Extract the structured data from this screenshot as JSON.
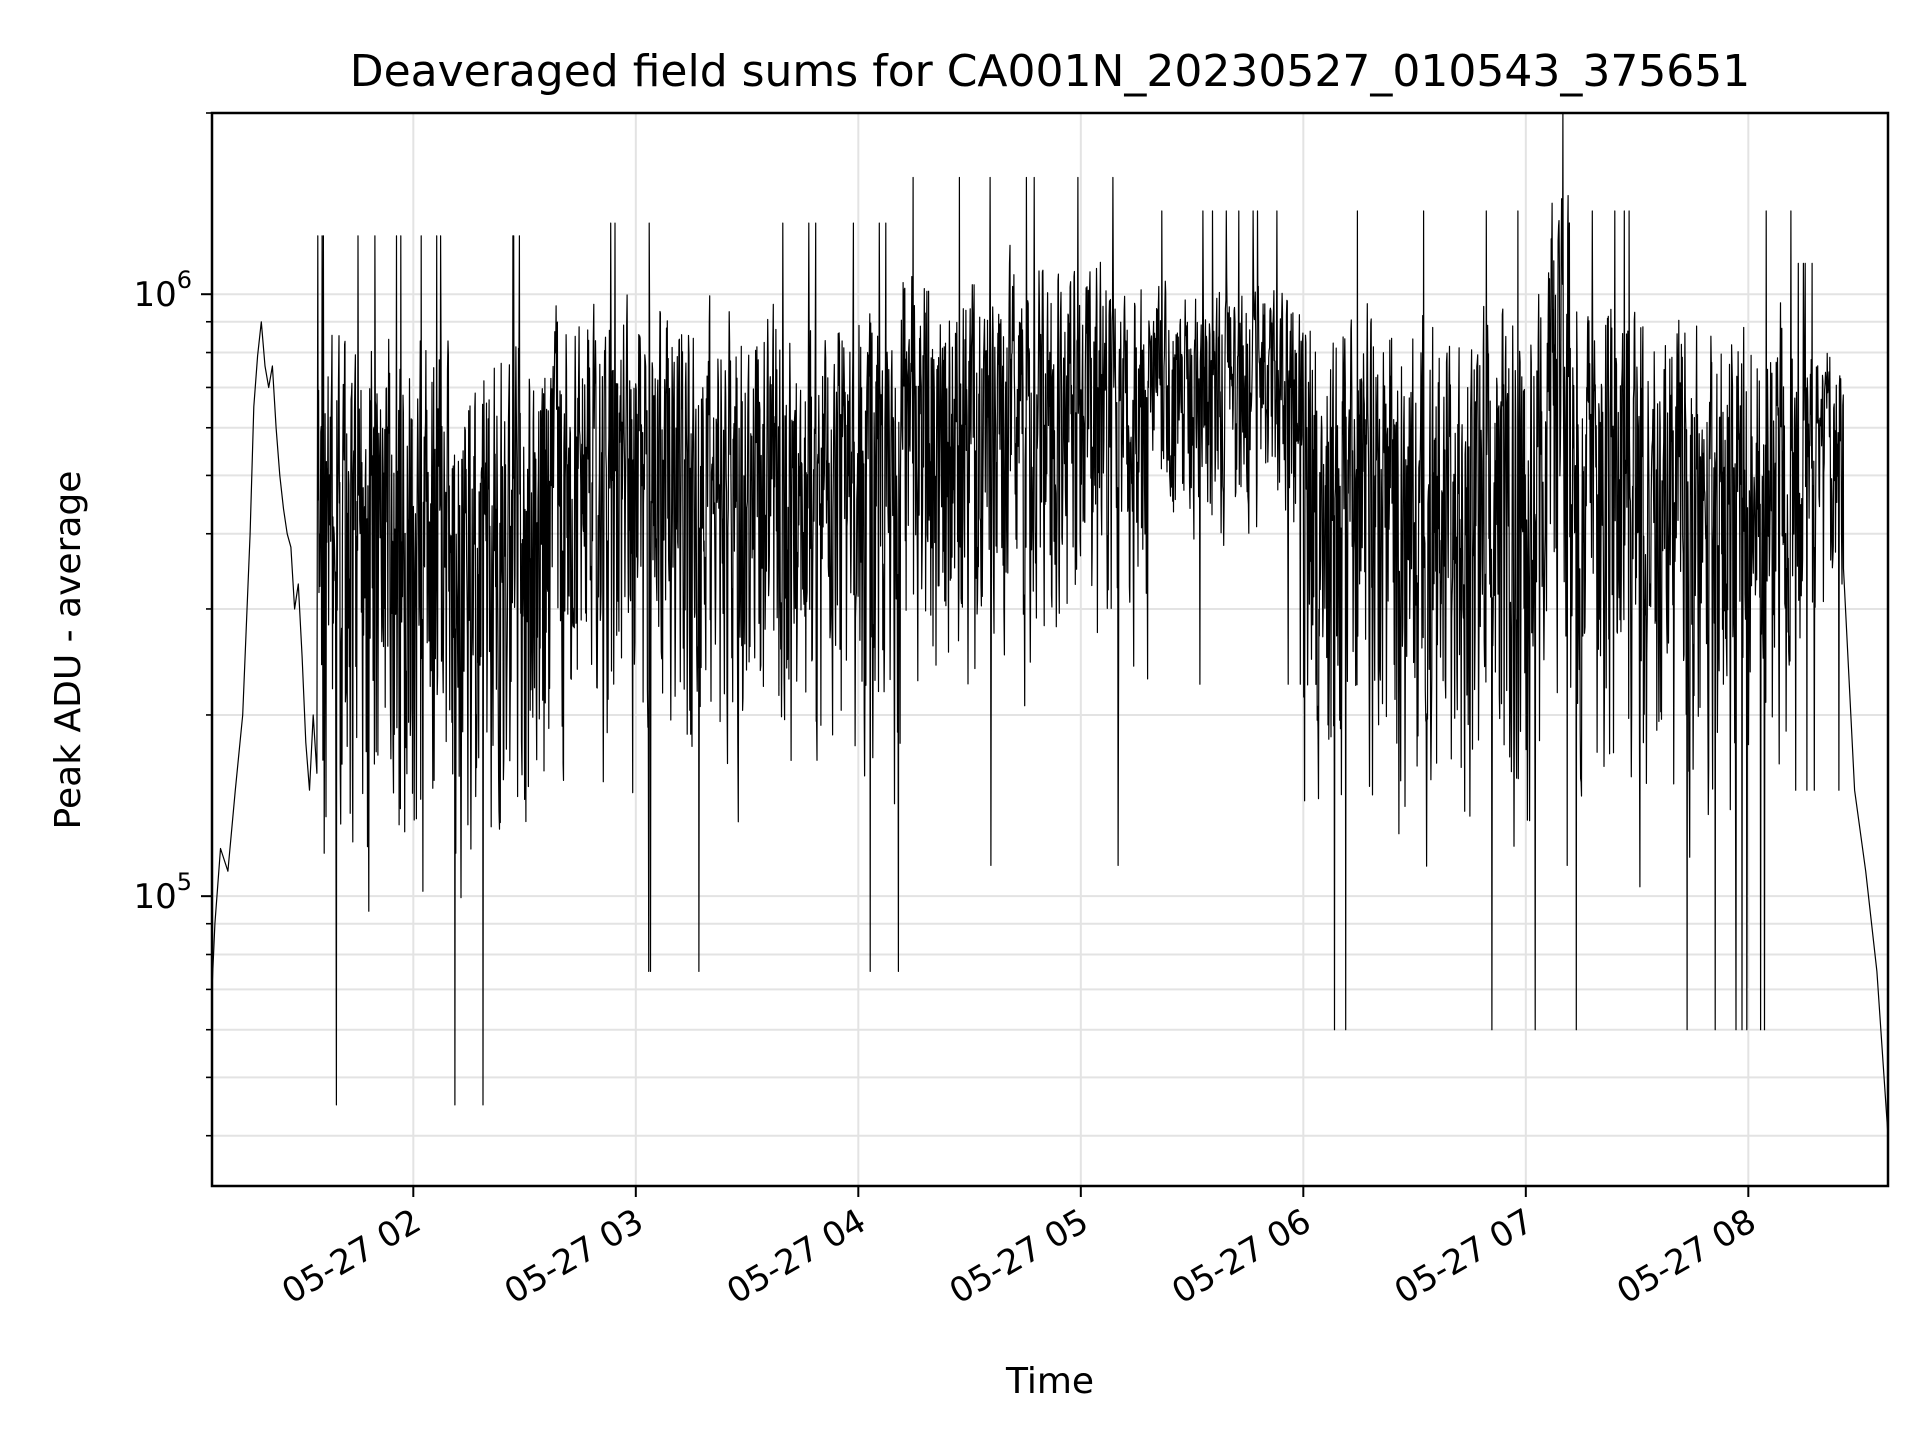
{
  "chart_data": {
    "type": "line",
    "title": "Deaveraged field sums for CA001N_20230527_010543_375651",
    "xlabel": "Time",
    "ylabel": "Peak ADU - average",
    "y_scale": "log",
    "ylim": [
      33000,
      2000000
    ],
    "y_major_ticks": [
      {
        "value": 100000,
        "base": "10",
        "exp": "5"
      },
      {
        "value": 1000000,
        "base": "10",
        "exp": "6"
      }
    ],
    "y_minor_ticks": [
      40000,
      50000,
      60000,
      70000,
      80000,
      90000,
      200000,
      300000,
      400000,
      500000,
      600000,
      700000,
      800000,
      900000,
      2000000
    ],
    "xlim": [
      "2023-05-27 01:05:43",
      "2023-05-27 08:37:40"
    ],
    "x_ticks": [
      {
        "time": "2023-05-27 02:00",
        "label": "05-27 02"
      },
      {
        "time": "2023-05-27 03:00",
        "label": "05-27 03"
      },
      {
        "time": "2023-05-27 04:00",
        "label": "05-27 04"
      },
      {
        "time": "2023-05-27 05:00",
        "label": "05-27 05"
      },
      {
        "time": "2023-05-27 06:00",
        "label": "05-27 06"
      },
      {
        "time": "2023-05-27 07:00",
        "label": "05-27 07"
      },
      {
        "time": "2023-05-27 08:00",
        "label": "05-27 08"
      }
    ],
    "grid": true,
    "line_color": "#000000",
    "series": [
      {
        "points": [
          {
            "x": "2023-05-27 01:05:43",
            "y": 70000
          },
          {
            "x": "2023-05-27 01:06:30",
            "y": 90000
          },
          {
            "x": "2023-05-27 01:08:00",
            "y": 120000
          },
          {
            "x": "2023-05-27 01:10:00",
            "y": 110000
          },
          {
            "x": "2023-05-27 01:12:00",
            "y": 150000
          },
          {
            "x": "2023-05-27 01:14:00",
            "y": 200000
          },
          {
            "x": "2023-05-27 01:16:00",
            "y": 400000
          },
          {
            "x": "2023-05-27 01:17:00",
            "y": 650000
          },
          {
            "x": "2023-05-27 01:18:00",
            "y": 790000
          },
          {
            "x": "2023-05-27 01:19:00",
            "y": 900000
          },
          {
            "x": "2023-05-27 01:20:00",
            "y": 760000
          },
          {
            "x": "2023-05-27 01:21:00",
            "y": 700000
          },
          {
            "x": "2023-05-27 01:22:00",
            "y": 760000
          },
          {
            "x": "2023-05-27 01:23:00",
            "y": 600000
          },
          {
            "x": "2023-05-27 01:24:00",
            "y": 500000
          },
          {
            "x": "2023-05-27 01:25:00",
            "y": 440000
          },
          {
            "x": "2023-05-27 01:26:00",
            "y": 400000
          },
          {
            "x": "2023-05-27 01:27:00",
            "y": 380000
          },
          {
            "x": "2023-05-27 01:28:00",
            "y": 300000
          },
          {
            "x": "2023-05-27 01:29:00",
            "y": 330000
          },
          {
            "x": "2023-05-27 01:30:00",
            "y": 250000
          },
          {
            "x": "2023-05-27 01:31:00",
            "y": 180000
          },
          {
            "x": "2023-05-27 01:32:00",
            "y": 150000
          },
          {
            "x": "2023-05-27 01:33:00",
            "y": 200000
          },
          {
            "x": "2023-05-27 01:34:00",
            "y": 160000
          }
        ]
      }
    ]
  }
}
